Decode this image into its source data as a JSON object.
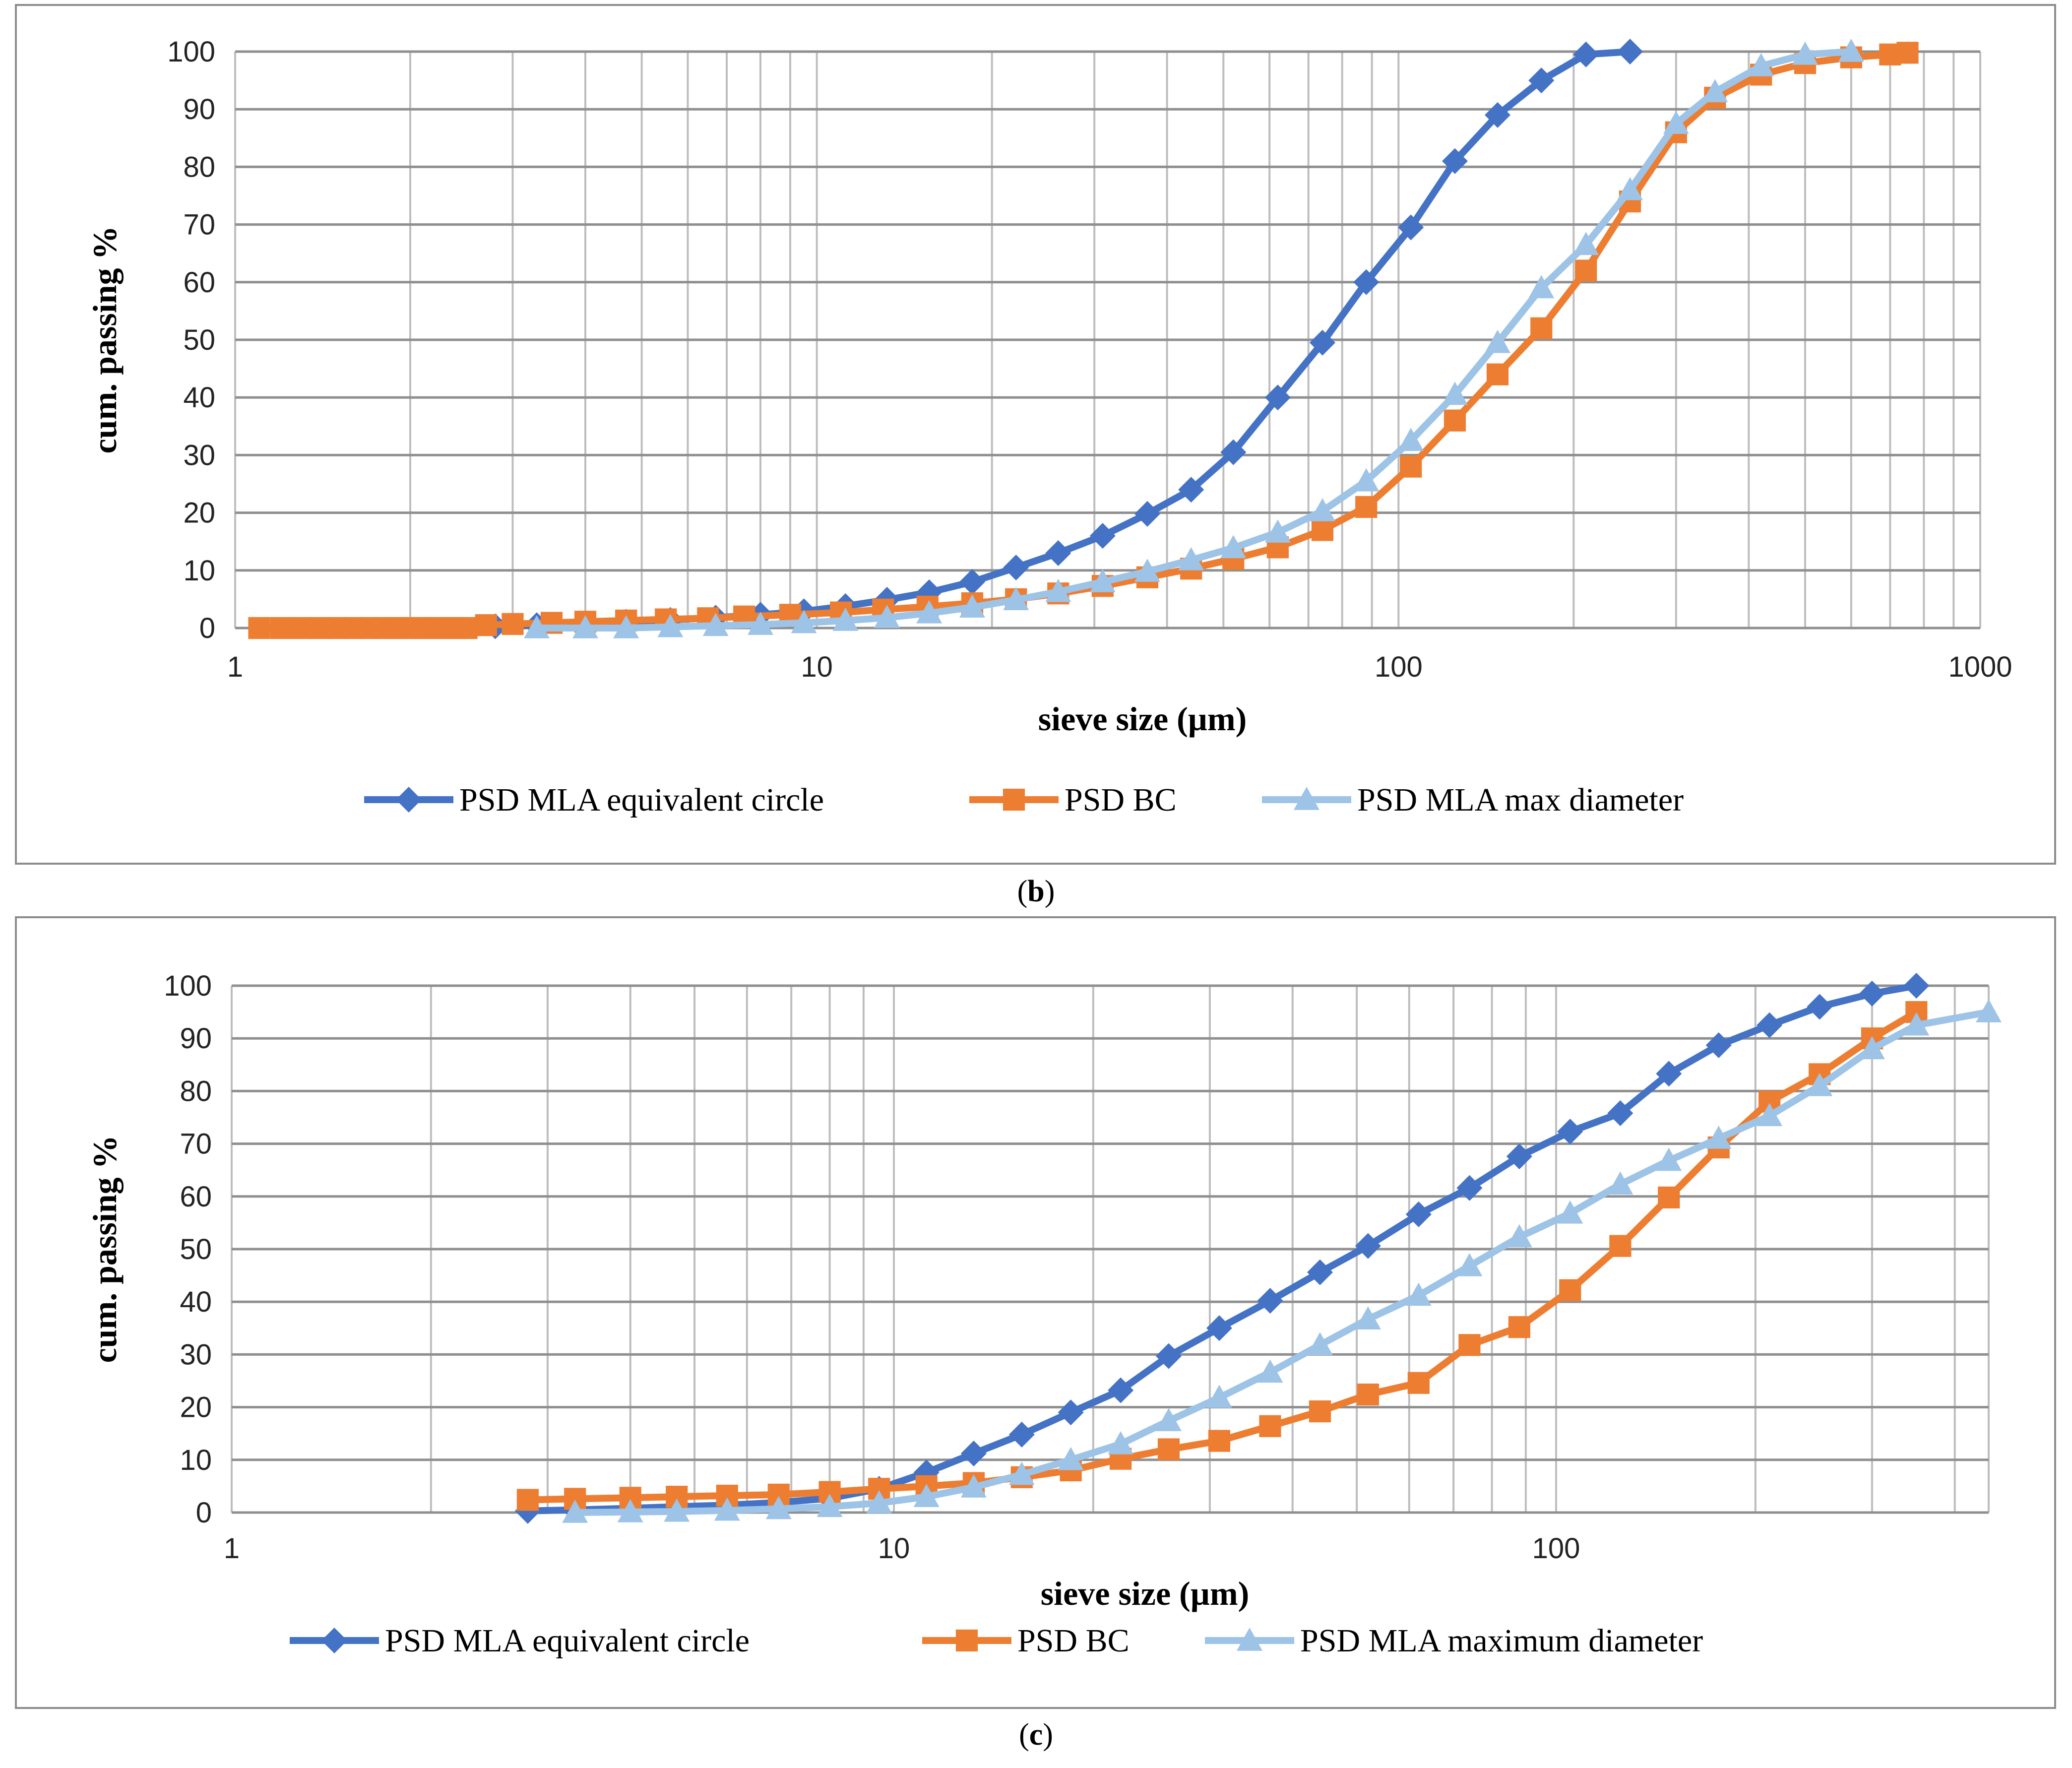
{
  "chart_data": [
    {
      "id": "b",
      "type": "line",
      "caption_letter": "b",
      "xscale": "log",
      "xlim": [
        1,
        1000
      ],
      "ylim": [
        0,
        100
      ],
      "xticks": [
        1,
        10,
        100,
        1000
      ],
      "xtick_labels": [
        "1",
        "10",
        "100",
        "1000"
      ],
      "yticks": [
        0,
        10,
        20,
        30,
        40,
        50,
        60,
        70,
        80,
        90,
        100
      ],
      "xlabel": "sieve size (µm)",
      "ylabel": "cum. passing %",
      "grid": true,
      "legend_position": "bottom",
      "series": [
        {
          "name": "PSD MLA equivalent circle",
          "color": "#4472c4",
          "marker": "diamond",
          "x": [
            2.8,
            3.3,
            4,
            4.7,
            5.6,
            6.7,
            8,
            9.5,
            11.2,
            13.2,
            15.6,
            18.5,
            22,
            26,
            31,
            37,
            44,
            52,
            62,
            74,
            88,
            105,
            125,
            148,
            176,
            210,
            250
          ],
          "y": [
            0.3,
            0.5,
            0.8,
            1.1,
            1.4,
            1.8,
            2.3,
            2.9,
            3.8,
            4.9,
            6.2,
            8,
            10.5,
            13,
            16,
            19.8,
            24,
            30.5,
            40,
            49.5,
            60,
            69.5,
            81,
            89,
            95,
            99.5,
            100
          ]
        },
        {
          "name": "PSD BC",
          "color": "#ed7d31",
          "marker": "square",
          "x": [
            1.1,
            1.2,
            1.3,
            1.4,
            1.5,
            1.6,
            1.7,
            1.8,
            1.9,
            2,
            2.1,
            2.2,
            2.3,
            2.4,
            2.5,
            2.7,
            3,
            3.5,
            4,
            4.7,
            5.5,
            6.5,
            7.5,
            9,
            11,
            13,
            15.5,
            18.5,
            22,
            26,
            31,
            37,
            44,
            52,
            62,
            74,
            88,
            105,
            125,
            148,
            176,
            210,
            250,
            300,
            350,
            420,
            500,
            600,
            700,
            750
          ],
          "y": [
            0,
            0,
            0,
            0,
            0,
            0,
            0,
            0,
            0,
            0,
            0,
            0,
            0,
            0,
            0,
            0.5,
            0.7,
            0.9,
            1.1,
            1.3,
            1.5,
            1.7,
            2,
            2.3,
            2.7,
            3.2,
            3.7,
            4.3,
            5,
            6,
            7.3,
            8.8,
            10.3,
            12,
            14,
            17,
            21,
            28,
            36,
            44,
            52,
            62,
            74,
            86,
            92,
            96,
            98,
            99,
            99.5,
            99.8
          ]
        },
        {
          "name": "PSD MLA max diameter",
          "color": "#9dc3e6",
          "marker": "triangle",
          "x": [
            3.3,
            4,
            4.7,
            5.6,
            6.7,
            8,
            9.5,
            11.2,
            13.2,
            15.6,
            18.5,
            22,
            26,
            31,
            37,
            44,
            52,
            62,
            74,
            88,
            105,
            125,
            148,
            176,
            210,
            250,
            300,
            350,
            420,
            500,
            600
          ],
          "y": [
            0,
            0,
            0,
            0.2,
            0.4,
            0.6,
            0.9,
            1.3,
            1.8,
            2.6,
            3.6,
            4.9,
            6.3,
            8,
            9.8,
            11.8,
            13.9,
            16.6,
            20.3,
            25.5,
            32.5,
            40.5,
            49.5,
            59,
            66.5,
            76,
            87.5,
            93,
            97.5,
            99.5,
            100
          ]
        }
      ]
    },
    {
      "id": "c",
      "type": "line",
      "caption_letter": "c",
      "xscale": "log",
      "xlim": [
        1,
        450
      ],
      "ylim": [
        0,
        100
      ],
      "xticks": [
        1,
        10,
        100
      ],
      "xtick_labels": [
        "1",
        "10",
        "100"
      ],
      "yticks": [
        0,
        10,
        20,
        30,
        40,
        50,
        60,
        70,
        80,
        90,
        100
      ],
      "xlabel": "sieve size (µm)",
      "ylabel": "cum. passing %",
      "grid": true,
      "legend_position": "bottom",
      "series": [
        {
          "name": "PSD MLA equivalent circle",
          "color": "#4472c4",
          "marker": "diamond",
          "x": [
            2.8,
            3.3,
            4,
            4.7,
            5.6,
            6.7,
            8,
            9.5,
            11.2,
            13.2,
            15.6,
            18.5,
            22,
            26,
            31,
            37,
            44,
            52,
            62,
            74,
            88,
            105,
            125,
            148,
            176,
            210,
            250,
            300,
            350
          ],
          "y": [
            0.3,
            0.5,
            0.8,
            1.1,
            1.4,
            1.9,
            2.7,
            4.5,
            7.6,
            11.2,
            14.8,
            19,
            23.2,
            29.7,
            35,
            40.2,
            45.6,
            50.6,
            56.6,
            61.6,
            67.6,
            72.3,
            75.8,
            83.3,
            88.7,
            92.5,
            96,
            98.5,
            100
          ]
        },
        {
          "name": "PSD BC",
          "color": "#ed7d31",
          "marker": "square",
          "x": [
            2.8,
            3.3,
            4,
            4.7,
            5.6,
            6.7,
            8,
            9.5,
            11.2,
            13.2,
            15.6,
            18.5,
            22,
            26,
            31,
            37,
            44,
            52,
            62,
            74,
            88,
            105,
            125,
            148,
            176,
            210,
            250,
            300,
            350
          ],
          "y": [
            2.4,
            2.6,
            2.8,
            3,
            3.2,
            3.4,
            3.9,
            4.5,
            5,
            5.6,
            6.7,
            8,
            10.2,
            12,
            13.6,
            16.4,
            19.2,
            22.4,
            24.6,
            31.8,
            35.2,
            42.2,
            50.6,
            59.8,
            69.3,
            78,
            83.2,
            90,
            95
          ]
        },
        {
          "name": "PSD MLA maximum diameter",
          "color": "#9dc3e6",
          "marker": "triangle",
          "x": [
            3.3,
            4,
            4.7,
            5.6,
            6.7,
            8,
            9.5,
            11.2,
            13.2,
            15.6,
            18.5,
            22,
            26,
            31,
            37,
            44,
            52,
            62,
            74,
            88,
            105,
            125,
            148,
            176,
            210,
            250,
            300,
            350,
            450
          ],
          "y": [
            0,
            0.1,
            0.2,
            0.4,
            0.7,
            1.1,
            1.8,
            3,
            4.8,
            7.2,
            10,
            13,
            17.4,
            21.8,
            26.6,
            31.8,
            36.7,
            41.2,
            46.8,
            52.3,
            56.8,
            62.3,
            66.8,
            71,
            75.3,
            81,
            88,
            92.5,
            95
          ]
        }
      ]
    }
  ]
}
